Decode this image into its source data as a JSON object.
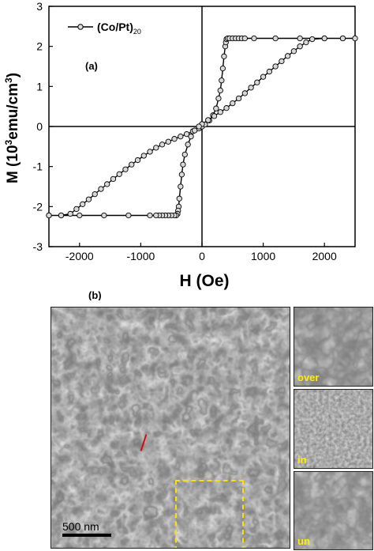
{
  "panel_a_label": "(a)",
  "panel_b_label": "(b)",
  "scale_bar_label": "500 nm",
  "insets": [
    {
      "label": "over"
    },
    {
      "label": "in"
    },
    {
      "label": "un"
    }
  ],
  "chart_data": {
    "type": "line",
    "xlabel": "H (Oe)",
    "ylabel": "M (10^3emu/cm^3)",
    "ylabel_parts": {
      "pre": "M (10",
      "sup": "3",
      "mid": "emu/cm",
      "sup2": "3",
      "post": ")"
    },
    "xlim": [
      -2500,
      2500
    ],
    "ylim": [
      -3,
      3
    ],
    "xticks": [
      -2000,
      -1000,
      0,
      1000,
      2000
    ],
    "yticks": [
      -3,
      -2,
      -1,
      0,
      1,
      2,
      3
    ],
    "legend": {
      "name": "(Co/Pt)",
      "subscript": "20",
      "placement": "top-left"
    },
    "series": [
      {
        "name": "(Co/Pt)20",
        "x": [
          -2500,
          -2300,
          -2150,
          -2050,
          -1950,
          -1850,
          -1750,
          -1650,
          -1550,
          -1450,
          -1350,
          -1250,
          -1150,
          -1050,
          -950,
          -850,
          -750,
          -650,
          -550,
          -450,
          -350,
          -250,
          -150,
          -50,
          0,
          50,
          120,
          180,
          230,
          270,
          300,
          320,
          340,
          360,
          380,
          390,
          400,
          420,
          450,
          500,
          550,
          600,
          650,
          700,
          850,
          1200,
          1600,
          2000,
          2300,
          2500,
          2300,
          2000,
          1800,
          1700,
          1600,
          1500,
          1400,
          1300,
          1200,
          1100,
          1000,
          900,
          800,
          700,
          600,
          500,
          400,
          300,
          200,
          100,
          0,
          -50,
          -120,
          -180,
          -230,
          -280,
          -310,
          -330,
          -350,
          -370,
          -380,
          -390,
          -400,
          -420,
          -450,
          -500,
          -550,
          -600,
          -650,
          -700,
          -750,
          -850,
          -1200,
          -1600,
          -2000,
          -2300,
          -2500
        ],
        "y": [
          -2.22,
          -2.22,
          -2.18,
          -2.06,
          -1.94,
          -1.82,
          -1.69,
          -1.56,
          -1.44,
          -1.31,
          -1.19,
          -1.07,
          -0.95,
          -0.84,
          -0.73,
          -0.63,
          -0.53,
          -0.45,
          -0.38,
          -0.31,
          -0.25,
          -0.19,
          -0.12,
          -0.05,
          0.0,
          0.05,
          0.15,
          0.28,
          0.45,
          0.7,
          0.9,
          1.15,
          1.45,
          1.75,
          2.0,
          2.1,
          2.18,
          2.2,
          2.2,
          2.2,
          2.2,
          2.2,
          2.2,
          2.2,
          2.2,
          2.2,
          2.2,
          2.2,
          2.2,
          2.2,
          2.2,
          2.2,
          2.18,
          2.1,
          2.0,
          1.88,
          1.76,
          1.63,
          1.5,
          1.37,
          1.24,
          1.1,
          0.97,
          0.83,
          0.7,
          0.58,
          0.46,
          0.36,
          0.26,
          0.16,
          0.06,
          0.0,
          -0.1,
          -0.25,
          -0.45,
          -0.7,
          -0.95,
          -1.2,
          -1.5,
          -1.8,
          -2.0,
          -2.1,
          -2.18,
          -2.22,
          -2.22,
          -2.22,
          -2.22,
          -2.22,
          -2.22,
          -2.22,
          -2.22,
          -2.22,
          -2.22,
          -2.22,
          -2.22,
          -2.22,
          -2.22
        ],
        "color": "#000000"
      }
    ]
  }
}
